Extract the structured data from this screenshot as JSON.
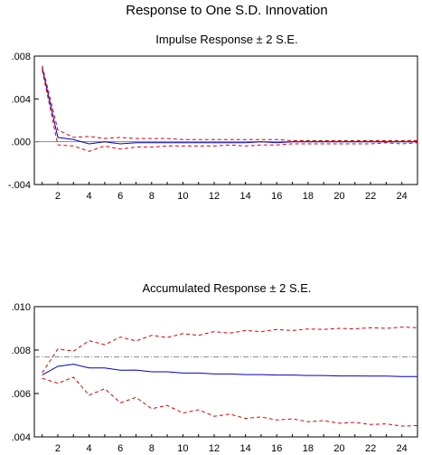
{
  "figure_title": "Response to One S.D. Innovation",
  "colors": {
    "response": "#0000cc",
    "bands": "#dd0000",
    "reference_line": "#888888",
    "frame": "#000000"
  },
  "chart_data": [
    {
      "type": "line",
      "title": "Impulse Response ± 2 S.E.",
      "xlabel": "",
      "ylabel": "",
      "xlim": [
        0.5,
        25
      ],
      "ylim": [
        -0.004,
        0.008
      ],
      "yticks": [
        -0.004,
        0.0,
        0.004,
        0.008
      ],
      "ytick_labels": [
        "-.004",
        ".000",
        ".004",
        ".008"
      ],
      "xticks": [
        2,
        4,
        6,
        8,
        10,
        12,
        14,
        16,
        18,
        20,
        22,
        24
      ],
      "xtick_labels": [
        "2",
        "4",
        "6",
        "8",
        "10",
        "12",
        "14",
        "16",
        "18",
        "20",
        "22",
        "24"
      ],
      "reference_line": 0.0,
      "grid": false,
      "legend": "none",
      "x": [
        1,
        2,
        3,
        4,
        5,
        6,
        7,
        8,
        9,
        10,
        11,
        12,
        13,
        14,
        15,
        16,
        17,
        18,
        19,
        20,
        21,
        22,
        23,
        24,
        25
      ],
      "series": [
        {
          "values": [
            0.0069,
            0.0004,
            0.0002,
            -0.0002,
            0.0,
            -0.0002,
            -0.0001,
            -0.0001,
            -0.0001,
            -0.0001,
            -0.0001,
            -0.0001,
            -0.0001,
            -0.0001,
            0.0,
            -0.0001,
            0.0,
            0.0,
            0.0,
            0.0,
            0.0,
            0.0,
            0.0,
            0.0,
            0.0
          ]
        },
        {
          "values": [
            0.0071,
            0.0011,
            0.0004,
            0.0005,
            0.0003,
            0.0004,
            0.0003,
            0.0003,
            0.0003,
            0.0002,
            0.0002,
            0.0002,
            0.0002,
            0.0002,
            0.0002,
            0.0002,
            0.0001,
            0.0001,
            0.0001,
            0.0001,
            0.0001,
            0.0001,
            0.0001,
            0.0001,
            0.0001
          ]
        },
        {
          "values": [
            0.0067,
            -0.0003,
            -0.0004,
            -0.0009,
            -0.0004,
            -0.0007,
            -0.0005,
            -0.0005,
            -0.0004,
            -0.0004,
            -0.0004,
            -0.0004,
            -0.0003,
            -0.0004,
            -0.0003,
            -0.0003,
            -0.0002,
            -0.0002,
            -0.0002,
            -0.0002,
            -0.0002,
            -0.0002,
            -0.0001,
            -0.0002,
            -0.0001
          ]
        }
      ]
    },
    {
      "type": "line",
      "title": "Accumulated Response ± 2 S.E.",
      "xlabel": "",
      "ylabel": "",
      "xlim": [
        0.5,
        25
      ],
      "ylim": [
        0.004,
        0.01
      ],
      "yticks": [
        0.004,
        0.006,
        0.008,
        0.01
      ],
      "ytick_labels": [
        ".004",
        ".006",
        ".008",
        ".010"
      ],
      "xticks": [
        2,
        4,
        6,
        8,
        10,
        12,
        14,
        16,
        18,
        20,
        22,
        24
      ],
      "xtick_labels": [
        "2",
        "4",
        "6",
        "8",
        "10",
        "12",
        "14",
        "16",
        "18",
        "20",
        "22",
        "24"
      ],
      "reference_line": 0.00768,
      "grid": false,
      "legend": "none",
      "x": [
        1,
        2,
        3,
        4,
        5,
        6,
        7,
        8,
        9,
        10,
        11,
        12,
        13,
        14,
        15,
        16,
        17,
        18,
        19,
        20,
        21,
        22,
        23,
        24,
        25
      ],
      "series": [
        {
          "values": [
            0.00685,
            0.00725,
            0.00735,
            0.00718,
            0.00718,
            0.00707,
            0.00708,
            0.007,
            0.007,
            0.00694,
            0.00694,
            0.0069,
            0.0069,
            0.00687,
            0.00687,
            0.00685,
            0.00685,
            0.00683,
            0.00683,
            0.00681,
            0.00681,
            0.0068,
            0.0068,
            0.00678,
            0.00678
          ]
        },
        {
          "values": [
            0.00695,
            0.00805,
            0.00795,
            0.00843,
            0.00825,
            0.0086,
            0.00842,
            0.00868,
            0.00858,
            0.00876,
            0.00868,
            0.00885,
            0.00878,
            0.0089,
            0.00885,
            0.00895,
            0.0089,
            0.00897,
            0.00895,
            0.009,
            0.00898,
            0.00903,
            0.009,
            0.00906,
            0.00903
          ]
        },
        {
          "values": [
            0.0067,
            0.00647,
            0.00675,
            0.00592,
            0.00622,
            0.00557,
            0.00582,
            0.0053,
            0.00545,
            0.0051,
            0.00525,
            0.00495,
            0.00505,
            0.00485,
            0.00492,
            0.00478,
            0.00483,
            0.0047,
            0.00475,
            0.00463,
            0.00467,
            0.00457,
            0.0046,
            0.0045,
            0.00452
          ]
        }
      ]
    }
  ]
}
